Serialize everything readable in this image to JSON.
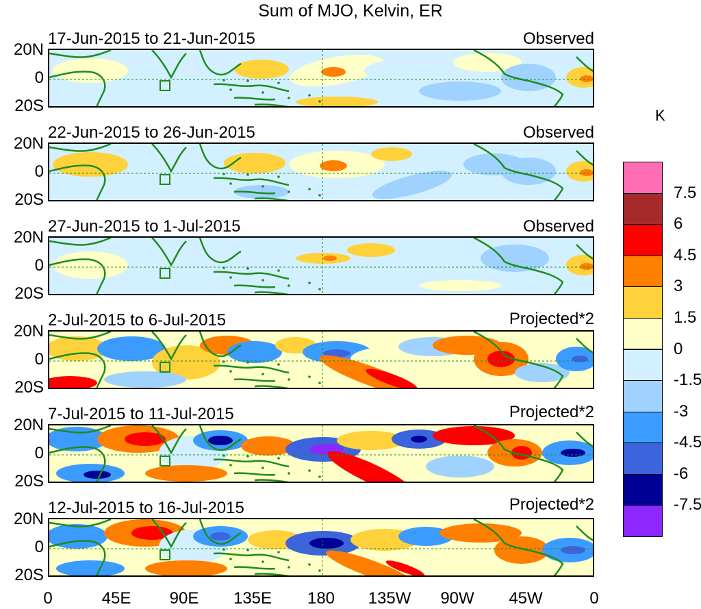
{
  "title": "Sum of MJO, Kelvin, ER",
  "panels": [
    {
      "date_range": "17-Jun-2015 to 21-Jun-2015",
      "status": "Observed"
    },
    {
      "date_range": "22-Jun-2015 to 26-Jun-2015",
      "status": "Observed"
    },
    {
      "date_range": "27-Jun-2015 to 1-Jul-2015",
      "status": "Observed"
    },
    {
      "date_range": "2-Jul-2015 to 6-Jul-2015",
      "status": "Projected*2"
    },
    {
      "date_range": "7-Jul-2015 to 11-Jul-2015",
      "status": "Projected*2"
    },
    {
      "date_range": "12-Jul-2015 to 16-Jul-2015",
      "status": "Projected*2"
    }
  ],
  "y_axis_labels": [
    "20N",
    "0",
    "20S"
  ],
  "x_axis_labels": [
    "0",
    "45E",
    "90E",
    "135E",
    "180",
    "135W",
    "90W",
    "45W",
    "0"
  ],
  "colorbar": {
    "unit": "K",
    "tick_labels": [
      "7.5",
      "6",
      "4.5",
      "3",
      "1.5",
      "0",
      "-1.5",
      "-3",
      "-4.5",
      "-6",
      "-7.5"
    ],
    "colors": [
      "#ff6eb4",
      "#a52a2a",
      "#ff0000",
      "#ff7f00",
      "#ffd23c",
      "#ffffc8",
      "#d2f0ff",
      "#a0d2ff",
      "#3c9bff",
      "#3c64dc",
      "#000096",
      "#8c28ff"
    ]
  },
  "colors": {
    "coast": "#1e8c1e",
    "zero_line": "#1e8c1e"
  }
}
